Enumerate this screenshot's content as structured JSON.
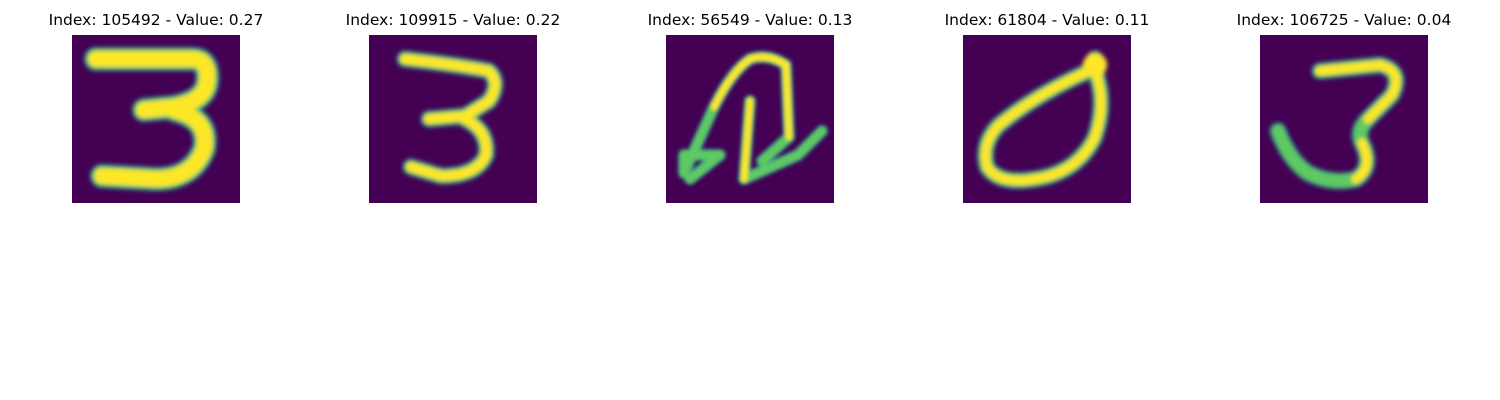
{
  "colors": {
    "background": "#440154",
    "stroke_low": "#21918c",
    "stroke_mid": "#5ec962",
    "stroke_high": "#fde725"
  },
  "panels": [
    {
      "title": "Index: 105492 - Value: 0.27",
      "image_icon": "handwritten-digit-3"
    },
    {
      "title": "Index: 109915 - Value: 0.22",
      "image_icon": "handwritten-digit-3"
    },
    {
      "title": "Index: 56549 - Value: 0.13",
      "image_icon": "handwritten-scribble"
    },
    {
      "title": "Index: 61804 - Value: 0.11",
      "image_icon": "handwritten-loop-shape"
    },
    {
      "title": "Index: 106725 - Value: 0.04",
      "image_icon": "handwritten-digit-3"
    }
  ]
}
